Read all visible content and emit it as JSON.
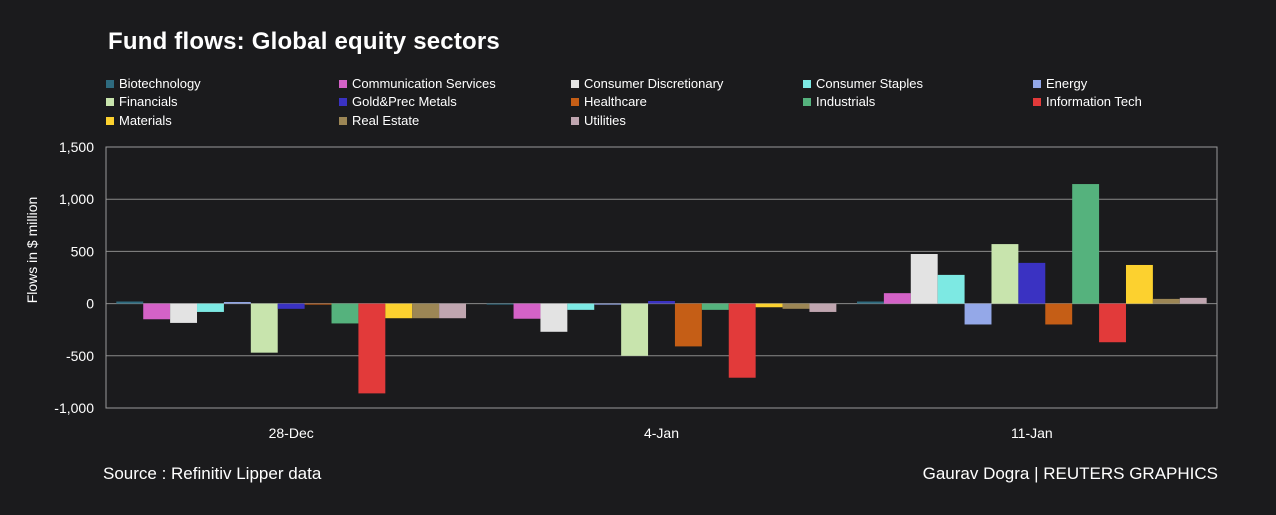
{
  "chart_data": {
    "type": "bar",
    "title": "Fund flows: Global equity sectors",
    "ylabel": "Flows in $ million",
    "xlabel": "",
    "ylim": [
      -1000,
      1500
    ],
    "yticks": [
      1500,
      1000,
      500,
      0,
      -500,
      -1000
    ],
    "ytick_labels": [
      "1,500",
      "1,000",
      "500",
      "0",
      "-500",
      "-1,000"
    ],
    "grid": true,
    "legend_position": "top",
    "categories": [
      "28-Dec",
      "4-Jan",
      "11-Jan"
    ],
    "series": [
      {
        "name": "Biotechnology",
        "color": "#2e6b7f",
        "values": [
          20,
          -5,
          20
        ]
      },
      {
        "name": "Communication Services",
        "color": "#d462c7",
        "values": [
          -150,
          -145,
          100
        ]
      },
      {
        "name": "Consumer Discretionary",
        "color": "#e3e3e3",
        "values": [
          -185,
          -270,
          475
        ]
      },
      {
        "name": "Consumer Staples",
        "color": "#7de9e3",
        "values": [
          -80,
          -60,
          275
        ]
      },
      {
        "name": "Energy",
        "color": "#94a8e8",
        "values": [
          15,
          -10,
          -200
        ]
      },
      {
        "name": "Financials",
        "color": "#c8e4ad",
        "values": [
          -470,
          -500,
          570
        ]
      },
      {
        "name": "Gold&Prec Metals",
        "color": "#3a32c2",
        "values": [
          -50,
          25,
          390
        ]
      },
      {
        "name": "Healthcare",
        "color": "#c55e16",
        "values": [
          -5,
          -410,
          -200
        ]
      },
      {
        "name": "Industrials",
        "color": "#55b27d",
        "values": [
          -190,
          -60,
          1145
        ]
      },
      {
        "name": "Information Tech",
        "color": "#e23a3a",
        "values": [
          -860,
          -710,
          -370
        ]
      },
      {
        "name": "Materials",
        "color": "#fcd12f",
        "values": [
          -140,
          -35,
          370
        ]
      },
      {
        "name": "Real Estate",
        "color": "#9c8655",
        "values": [
          -140,
          -50,
          45
        ]
      },
      {
        "name": "Utilities",
        "color": "#c0a6b0",
        "values": [
          -140,
          -80,
          55
        ]
      }
    ]
  },
  "footer": {
    "source": "Source : Refinitiv Lipper data",
    "credit": "Gaurav Dogra | REUTERS GRAPHICS"
  }
}
